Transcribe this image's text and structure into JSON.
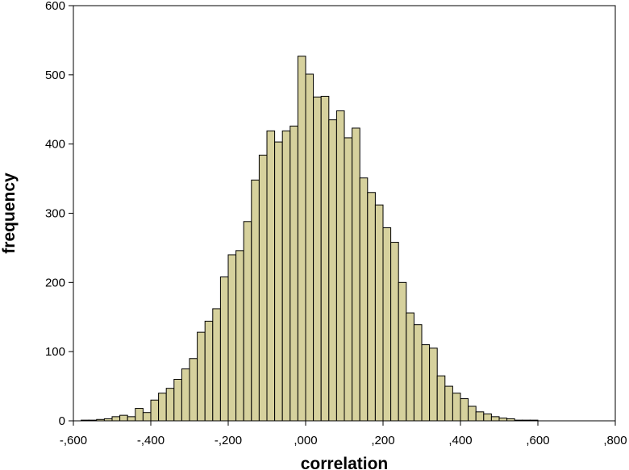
{
  "chart_data": {
    "type": "bar",
    "subtype": "histogram",
    "xlabel": "correlation",
    "ylabel": "frequency",
    "xlim": [
      -0.6,
      0.8
    ],
    "ylim": [
      0,
      600
    ],
    "x_ticks": [
      {
        "value": -0.6,
        "label": "-,600"
      },
      {
        "value": -0.4,
        "label": "-,400"
      },
      {
        "value": -0.2,
        "label": "-,200"
      },
      {
        "value": 0.0,
        "label": ",000"
      },
      {
        "value": 0.2,
        "label": ",200"
      },
      {
        "value": 0.4,
        "label": ",400"
      },
      {
        "value": 0.6,
        "label": ",600"
      },
      {
        "value": 0.8,
        "label": ",800"
      }
    ],
    "y_ticks": [
      {
        "value": 0,
        "label": "0"
      },
      {
        "value": 100,
        "label": "100"
      },
      {
        "value": 200,
        "label": "200"
      },
      {
        "value": 300,
        "label": "300"
      },
      {
        "value": 400,
        "label": "400"
      },
      {
        "value": 500,
        "label": "500"
      },
      {
        "value": 600,
        "label": "600"
      }
    ],
    "grid": false,
    "bar_color": "#d6d19d",
    "bar_edge_color": "#000000",
    "bins": [
      {
        "x0": -0.58,
        "x1": -0.56,
        "count": 1
      },
      {
        "x0": -0.56,
        "x1": -0.54,
        "count": 1
      },
      {
        "x0": -0.54,
        "x1": -0.52,
        "count": 2
      },
      {
        "x0": -0.52,
        "x1": -0.5,
        "count": 3
      },
      {
        "x0": -0.5,
        "x1": -0.48,
        "count": 6
      },
      {
        "x0": -0.48,
        "x1": -0.46,
        "count": 8
      },
      {
        "x0": -0.46,
        "x1": -0.44,
        "count": 6
      },
      {
        "x0": -0.44,
        "x1": -0.42,
        "count": 18
      },
      {
        "x0": -0.42,
        "x1": -0.4,
        "count": 12
      },
      {
        "x0": -0.4,
        "x1": -0.38,
        "count": 30
      },
      {
        "x0": -0.38,
        "x1": -0.36,
        "count": 40
      },
      {
        "x0": -0.36,
        "x1": -0.34,
        "count": 47
      },
      {
        "x0": -0.34,
        "x1": -0.32,
        "count": 60
      },
      {
        "x0": -0.32,
        "x1": -0.3,
        "count": 75
      },
      {
        "x0": -0.3,
        "x1": -0.28,
        "count": 90
      },
      {
        "x0": -0.28,
        "x1": -0.26,
        "count": 128
      },
      {
        "x0": -0.26,
        "x1": -0.24,
        "count": 144
      },
      {
        "x0": -0.24,
        "x1": -0.22,
        "count": 162
      },
      {
        "x0": -0.22,
        "x1": -0.2,
        "count": 208
      },
      {
        "x0": -0.2,
        "x1": -0.18,
        "count": 240
      },
      {
        "x0": -0.18,
        "x1": -0.16,
        "count": 246
      },
      {
        "x0": -0.16,
        "x1": -0.14,
        "count": 288
      },
      {
        "x0": -0.14,
        "x1": -0.12,
        "count": 348
      },
      {
        "x0": -0.12,
        "x1": -0.1,
        "count": 384
      },
      {
        "x0": -0.1,
        "x1": -0.08,
        "count": 419
      },
      {
        "x0": -0.08,
        "x1": -0.06,
        "count": 403
      },
      {
        "x0": -0.06,
        "x1": -0.04,
        "count": 419
      },
      {
        "x0": -0.04,
        "x1": -0.02,
        "count": 426
      },
      {
        "x0": -0.02,
        "x1": 0.0,
        "count": 527
      },
      {
        "x0": 0.0,
        "x1": 0.02,
        "count": 501
      },
      {
        "x0": 0.02,
        "x1": 0.04,
        "count": 468
      },
      {
        "x0": 0.04,
        "x1": 0.06,
        "count": 469
      },
      {
        "x0": 0.06,
        "x1": 0.08,
        "count": 435
      },
      {
        "x0": 0.08,
        "x1": 0.1,
        "count": 448
      },
      {
        "x0": 0.1,
        "x1": 0.12,
        "count": 409
      },
      {
        "x0": 0.12,
        "x1": 0.14,
        "count": 423
      },
      {
        "x0": 0.14,
        "x1": 0.16,
        "count": 351
      },
      {
        "x0": 0.16,
        "x1": 0.18,
        "count": 330
      },
      {
        "x0": 0.18,
        "x1": 0.2,
        "count": 312
      },
      {
        "x0": 0.2,
        "x1": 0.22,
        "count": 279
      },
      {
        "x0": 0.22,
        "x1": 0.24,
        "count": 258
      },
      {
        "x0": 0.24,
        "x1": 0.26,
        "count": 200
      },
      {
        "x0": 0.26,
        "x1": 0.28,
        "count": 156
      },
      {
        "x0": 0.28,
        "x1": 0.3,
        "count": 139
      },
      {
        "x0": 0.3,
        "x1": 0.32,
        "count": 110
      },
      {
        "x0": 0.32,
        "x1": 0.34,
        "count": 105
      },
      {
        "x0": 0.34,
        "x1": 0.36,
        "count": 65
      },
      {
        "x0": 0.36,
        "x1": 0.38,
        "count": 50
      },
      {
        "x0": 0.38,
        "x1": 0.4,
        "count": 40
      },
      {
        "x0": 0.4,
        "x1": 0.42,
        "count": 32
      },
      {
        "x0": 0.42,
        "x1": 0.44,
        "count": 21
      },
      {
        "x0": 0.44,
        "x1": 0.46,
        "count": 13
      },
      {
        "x0": 0.46,
        "x1": 0.48,
        "count": 10
      },
      {
        "x0": 0.48,
        "x1": 0.5,
        "count": 6
      },
      {
        "x0": 0.5,
        "x1": 0.52,
        "count": 4
      },
      {
        "x0": 0.52,
        "x1": 0.54,
        "count": 3
      },
      {
        "x0": 0.54,
        "x1": 0.56,
        "count": 1
      },
      {
        "x0": 0.56,
        "x1": 0.58,
        "count": 1
      },
      {
        "x0": 0.58,
        "x1": 0.6,
        "count": 1
      }
    ]
  }
}
